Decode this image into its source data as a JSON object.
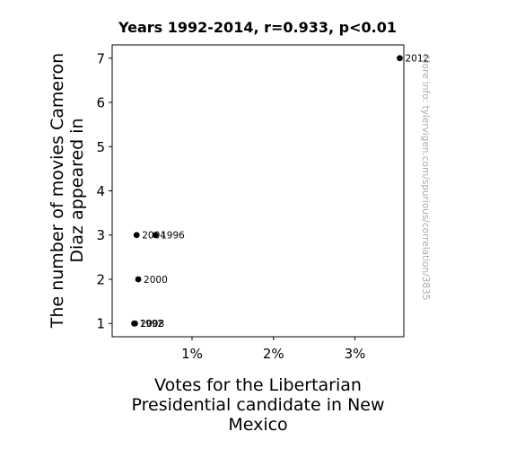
{
  "chart_data": {
    "type": "scatter",
    "title": "Years 1992-2014, r=0.933, p<0.01",
    "xlabel_lines": [
      "Votes for the Libertarian",
      "Presidential candidate in New",
      "Mexico"
    ],
    "ylabel_lines": [
      "The number of movies Cameron",
      "Diaz appeared in"
    ],
    "x_unit": "percent",
    "xlim": [
      0.02,
      3.6
    ],
    "ylim": [
      0.7,
      7.3
    ],
    "x_ticks": [
      1,
      2,
      3
    ],
    "x_tick_labels": [
      "1%",
      "2%",
      "3%"
    ],
    "y_ticks": [
      1,
      2,
      3,
      4,
      5,
      6,
      7
    ],
    "y_tick_labels": [
      "1",
      "2",
      "3",
      "4",
      "5",
      "6",
      "7"
    ],
    "grid": false,
    "points": [
      {
        "label": "1992",
        "x": 0.29,
        "y": 1
      },
      {
        "label": "2008",
        "x": 0.3,
        "y": 1
      },
      {
        "label": "2004",
        "x": 0.32,
        "y": 3
      },
      {
        "label": "1996",
        "x": 0.55,
        "y": 3
      },
      {
        "label": "2000",
        "x": 0.34,
        "y": 2
      },
      {
        "label": "2012",
        "x": 3.55,
        "y": 7
      }
    ],
    "marker_color": "#000000"
  },
  "watermark": "More info: tylervigen.com/spurious/correlation/3835"
}
